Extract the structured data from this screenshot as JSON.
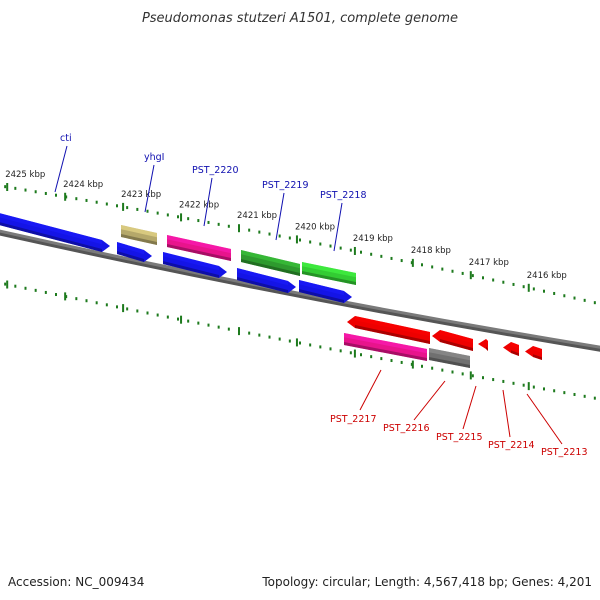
{
  "title": "Pseudomonas stutzeri A1501, complete genome",
  "footer": {
    "accession": "Accession: NC_009434",
    "summary": "Topology: circular; Length: 4,567,418 bp; Genes: 4,201"
  },
  "ruler": [
    {
      "label": "2425 kbp"
    },
    {
      "label": "2424 kbp"
    },
    {
      "label": "2423 kbp"
    },
    {
      "label": "2422 kbp"
    },
    {
      "label": "2421 kbp"
    },
    {
      "label": "2420 kbp"
    },
    {
      "label": "2419 kbp"
    },
    {
      "label": "2418 kbp"
    },
    {
      "label": "2417 kbp"
    },
    {
      "label": "2416 kbp"
    }
  ],
  "forward_labels": [
    {
      "text": "cti"
    },
    {
      "text": "yhgI"
    },
    {
      "text": "PST_2220"
    },
    {
      "text": "PST_2219"
    },
    {
      "text": "PST_2218"
    }
  ],
  "reverse_labels": [
    {
      "text": "PST_2217"
    },
    {
      "text": "PST_2216"
    },
    {
      "text": "PST_2215"
    },
    {
      "text": "PST_2214"
    },
    {
      "text": "PST_2213"
    }
  ],
  "colors": {
    "forward_label": "#1010b0",
    "reverse_label": "#cc0000",
    "backbone": "#7a7a7a",
    "tick": "#1d7a1d",
    "blue": "#1414e6",
    "olive": "#b5a86a",
    "magenta": "#e8148c",
    "green_dark": "#2e9a2e",
    "green": "#33cc33",
    "red": "#ee0000",
    "grey": "#707070"
  }
}
